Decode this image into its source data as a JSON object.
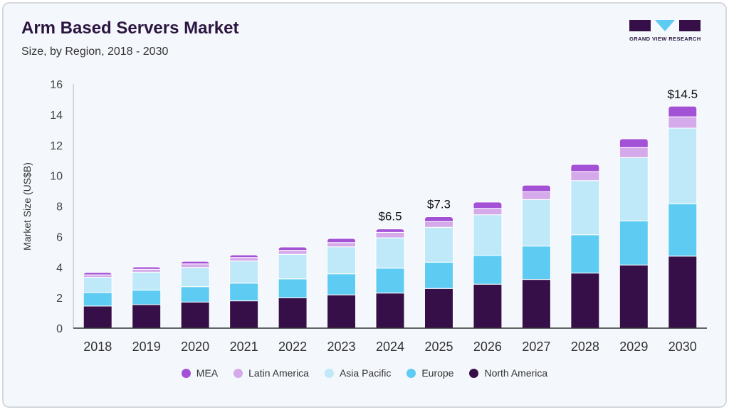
{
  "header": {
    "title": "Arm Based Servers Market",
    "subtitle": "Size, by Region, 2018 - 2030",
    "logo_text": "GRAND VIEW RESEARCH"
  },
  "chart_data": {
    "type": "bar",
    "stacked": true,
    "categories": [
      "2018",
      "2019",
      "2020",
      "2021",
      "2022",
      "2023",
      "2024",
      "2025",
      "2026",
      "2027",
      "2028",
      "2029",
      "2030"
    ],
    "ylabel": "Market Size (US$B)",
    "ylim": [
      0,
      16
    ],
    "yticks": [
      0,
      2,
      4,
      6,
      8,
      10,
      12,
      14,
      16
    ],
    "grid": false,
    "legend_position": "bottom",
    "series": [
      {
        "name": "North America",
        "color": "#360f48",
        "values": [
          1.45,
          1.54,
          1.71,
          1.79,
          1.99,
          2.18,
          2.3,
          2.6,
          2.88,
          3.19,
          3.61,
          4.14,
          4.72
        ]
      },
      {
        "name": "Europe",
        "color": "#5ecbf3",
        "values": [
          0.88,
          0.95,
          1.01,
          1.16,
          1.24,
          1.38,
          1.63,
          1.72,
          1.89,
          2.19,
          2.51,
          2.89,
          3.43
        ]
      },
      {
        "name": "Asia Pacific",
        "color": "#bfe9f8",
        "values": [
          1.0,
          1.18,
          1.26,
          1.45,
          1.61,
          1.77,
          1.99,
          2.29,
          2.66,
          3.05,
          3.55,
          4.15,
          4.96
        ]
      },
      {
        "name": "Latin America",
        "color": "#d5aaea",
        "values": [
          0.16,
          0.19,
          0.23,
          0.23,
          0.26,
          0.28,
          0.36,
          0.37,
          0.42,
          0.51,
          0.59,
          0.65,
          0.74
        ]
      },
      {
        "name": "MEA",
        "color": "#a352d6",
        "values": [
          0.16,
          0.15,
          0.17,
          0.17,
          0.22,
          0.27,
          0.22,
          0.32,
          0.41,
          0.43,
          0.47,
          0.58,
          0.7
        ]
      }
    ],
    "annotations": [
      {
        "category": "2024",
        "label": "$6.5",
        "value": 6.5
      },
      {
        "category": "2025",
        "label": "$7.3",
        "value": 7.3
      },
      {
        "category": "2030",
        "label": "$14.5",
        "value": 14.5
      }
    ]
  }
}
